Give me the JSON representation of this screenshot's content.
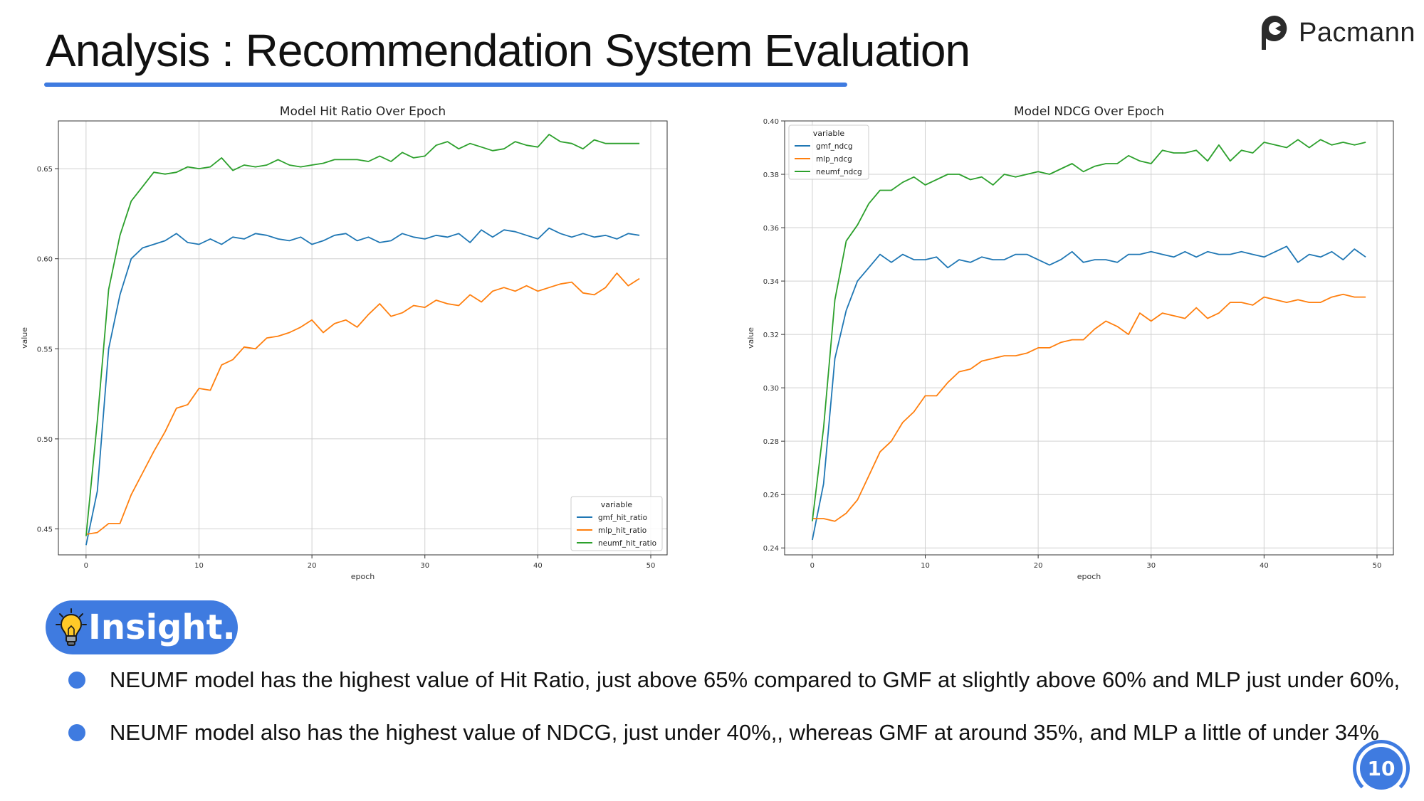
{
  "slide": {
    "title": "Analysis : Recommendation System Evaluation",
    "brand": "Pacmann",
    "page_number": "10"
  },
  "insight": {
    "label": "Insight.",
    "bullets": [
      "NEUMF model has the highest value of Hit Ratio, just above 65% compared to  GMF at slightly above 60% and MLP just under 60%,",
      "NEUMF model also has the highest value of NDCG, just under 40%,, whereas GMF at around 35%, and  MLP a little of under 34%"
    ]
  },
  "chart_data": [
    {
      "type": "line",
      "title": "Model Hit Ratio Over Epoch",
      "xlabel": "epoch",
      "ylabel": "value",
      "xlim": [
        -2.45,
        51.45
      ],
      "ylim": [
        0.4356,
        0.6765
      ],
      "xticks": [
        0,
        10,
        20,
        30,
        40,
        50
      ],
      "yticks": [
        0.45,
        0.5,
        0.55,
        0.6,
        0.65
      ],
      "ytick_labels": [
        "0.45",
        "0.50",
        "0.55",
        "0.60",
        "0.65"
      ],
      "grid": true,
      "legend": {
        "title": "variable",
        "position": "lower-right"
      },
      "series": [
        {
          "name": "gmf_hit_ratio",
          "color": "#1f77b4",
          "values": [
            0.441,
            0.471,
            0.55,
            0.58,
            0.6,
            0.606,
            0.608,
            0.61,
            0.614,
            0.609,
            0.608,
            0.611,
            0.608,
            0.612,
            0.611,
            0.614,
            0.613,
            0.611,
            0.61,
            0.612,
            0.608,
            0.61,
            0.613,
            0.614,
            0.61,
            0.612,
            0.609,
            0.61,
            0.614,
            0.612,
            0.611,
            0.613,
            0.612,
            0.614,
            0.609,
            0.616,
            0.612,
            0.616,
            0.615,
            0.613,
            0.611,
            0.617,
            0.614,
            0.612,
            0.614,
            0.612,
            0.613,
            0.611,
            0.614,
            0.613
          ]
        },
        {
          "name": "mlp_hit_ratio",
          "color": "#ff7f0e",
          "values": [
            0.447,
            0.448,
            0.453,
            0.453,
            0.469,
            0.481,
            0.493,
            0.504,
            0.517,
            0.519,
            0.528,
            0.527,
            0.541,
            0.544,
            0.551,
            0.55,
            0.556,
            0.557,
            0.559,
            0.562,
            0.566,
            0.559,
            0.564,
            0.566,
            0.562,
            0.569,
            0.575,
            0.568,
            0.57,
            0.574,
            0.573,
            0.577,
            0.575,
            0.574,
            0.58,
            0.576,
            0.582,
            0.584,
            0.582,
            0.585,
            0.582,
            0.584,
            0.586,
            0.587,
            0.581,
            0.58,
            0.584,
            0.592,
            0.585,
            0.589
          ]
        },
        {
          "name": "neumf_hit_ratio",
          "color": "#2ca02c",
          "values": [
            0.446,
            0.51,
            0.583,
            0.613,
            0.632,
            0.64,
            0.648,
            0.647,
            0.648,
            0.651,
            0.65,
            0.651,
            0.656,
            0.649,
            0.652,
            0.651,
            0.652,
            0.655,
            0.652,
            0.651,
            0.652,
            0.653,
            0.655,
            0.655,
            0.655,
            0.654,
            0.657,
            0.654,
            0.659,
            0.656,
            0.657,
            0.663,
            0.665,
            0.661,
            0.664,
            0.662,
            0.66,
            0.661,
            0.665,
            0.663,
            0.662,
            0.669,
            0.665,
            0.664,
            0.661,
            0.666,
            0.664,
            0.664,
            0.664,
            0.664
          ]
        }
      ]
    },
    {
      "type": "line",
      "title": "Model NDCG Over Epoch",
      "xlabel": "epoch",
      "ylabel": "value",
      "xlim": [
        -2.45,
        51.45
      ],
      "ylim": [
        0.2374,
        0.4
      ],
      "xticks": [
        0,
        10,
        20,
        30,
        40,
        50
      ],
      "yticks": [
        0.24,
        0.26,
        0.28,
        0.3,
        0.32,
        0.34,
        0.36,
        0.38,
        0.4
      ],
      "ytick_labels": [
        "0.24",
        "0.26",
        "0.28",
        "0.30",
        "0.32",
        "0.34",
        "0.36",
        "0.38",
        "0.40"
      ],
      "grid": true,
      "legend": {
        "title": "variable",
        "position": "upper-left"
      },
      "series": [
        {
          "name": "gmf_ndcg",
          "color": "#1f77b4",
          "values": [
            0.243,
            0.264,
            0.311,
            0.329,
            0.34,
            0.345,
            0.35,
            0.347,
            0.35,
            0.348,
            0.348,
            0.349,
            0.345,
            0.348,
            0.347,
            0.349,
            0.348,
            0.348,
            0.35,
            0.35,
            0.348,
            0.346,
            0.348,
            0.351,
            0.347,
            0.348,
            0.348,
            0.347,
            0.35,
            0.35,
            0.351,
            0.35,
            0.349,
            0.351,
            0.349,
            0.351,
            0.35,
            0.35,
            0.351,
            0.35,
            0.349,
            0.351,
            0.353,
            0.347,
            0.35,
            0.349,
            0.351,
            0.348,
            0.352,
            0.349
          ]
        },
        {
          "name": "mlp_ndcg",
          "color": "#ff7f0e",
          "values": [
            0.251,
            0.251,
            0.25,
            0.253,
            0.258,
            0.267,
            0.276,
            0.28,
            0.287,
            0.291,
            0.297,
            0.297,
            0.302,
            0.306,
            0.307,
            0.31,
            0.311,
            0.312,
            0.312,
            0.313,
            0.315,
            0.315,
            0.317,
            0.318,
            0.318,
            0.322,
            0.325,
            0.323,
            0.32,
            0.328,
            0.325,
            0.328,
            0.327,
            0.326,
            0.33,
            0.326,
            0.328,
            0.332,
            0.332,
            0.331,
            0.334,
            0.333,
            0.332,
            0.333,
            0.332,
            0.332,
            0.334,
            0.335,
            0.334,
            0.334
          ]
        },
        {
          "name": "neumf_ndcg",
          "color": "#2ca02c",
          "values": [
            0.25,
            0.285,
            0.333,
            0.355,
            0.361,
            0.369,
            0.374,
            0.374,
            0.377,
            0.379,
            0.376,
            0.378,
            0.38,
            0.38,
            0.378,
            0.379,
            0.376,
            0.38,
            0.379,
            0.38,
            0.381,
            0.38,
            0.382,
            0.384,
            0.381,
            0.383,
            0.384,
            0.384,
            0.387,
            0.385,
            0.384,
            0.389,
            0.388,
            0.388,
            0.389,
            0.385,
            0.391,
            0.385,
            0.389,
            0.388,
            0.392,
            0.391,
            0.39,
            0.393,
            0.39,
            0.393,
            0.391,
            0.392,
            0.391,
            0.392
          ]
        }
      ]
    }
  ]
}
